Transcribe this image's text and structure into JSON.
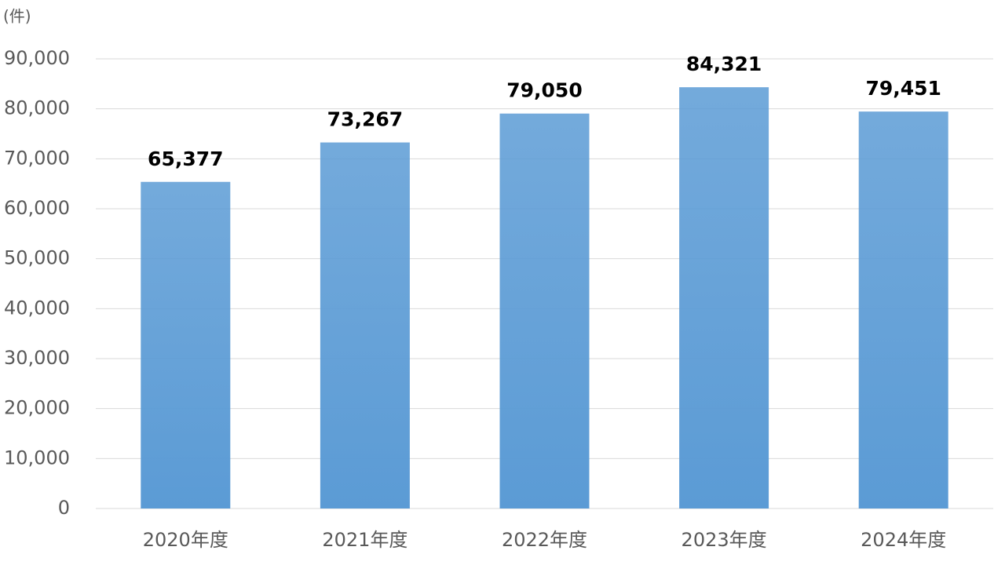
{
  "chart_data": {
    "type": "bar",
    "unit_label": "(件)",
    "categories": [
      "2020年度",
      "2021年度",
      "2022年度",
      "2023年度",
      "2024年度"
    ],
    "values": [
      65377,
      73267,
      79050,
      84321,
      79451
    ],
    "value_labels": [
      "65,377",
      "73,267",
      "79,050",
      "84,321",
      "79,451"
    ],
    "color": "#5b9bd5",
    "ylim": [
      0,
      90000
    ],
    "yticks": [
      0,
      {
        "value": 10000,
        "label": "10,000"
      },
      {
        "value": 20000,
        "label": "20,000"
      },
      {
        "value": 30000,
        "label": "30,000"
      },
      {
        "value": 40000,
        "label": "40,000"
      },
      {
        "value": 50000,
        "label": "50,000"
      },
      {
        "value": 60000,
        "label": "60,000"
      },
      {
        "value": 70000,
        "label": "70,000"
      },
      {
        "value": 80000,
        "label": "80,000"
      },
      {
        "value": 90000,
        "label": "90,000"
      }
    ],
    "grid": true
  }
}
